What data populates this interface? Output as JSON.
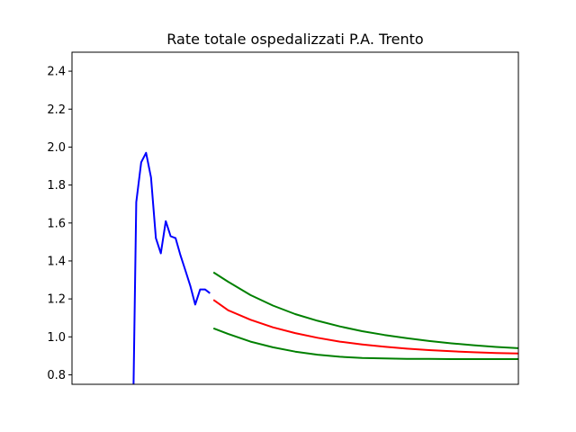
{
  "chart_data": {
    "type": "line",
    "title": "Rate totale ospedalizzati P.A. Trento",
    "xlabel": "",
    "ylabel": "",
    "x_ticks_shown": false,
    "xlim": [
      0,
      100
    ],
    "ylim": [
      0.75,
      2.5
    ],
    "yticks": [
      0.8,
      1.0,
      1.2,
      1.4,
      1.6,
      1.8,
      2.0,
      2.2,
      2.4
    ],
    "ytick_labels": [
      "0.8",
      "1.0",
      "1.2",
      "1.4",
      "1.6",
      "1.8",
      "2.0",
      "2.2",
      "2.4"
    ],
    "grid": false,
    "legend": "none",
    "series": [
      {
        "color": "#0000ff",
        "style": "observed",
        "x": [
          13.8,
          14.4,
          15.5,
          16.6,
          17.7,
          18.8,
          19.9,
          21.0,
          22.1,
          23.2,
          24.3,
          25.4,
          26.5,
          27.6,
          28.7,
          29.8,
          30.9
        ],
        "y": [
          0.75,
          1.71,
          1.92,
          1.97,
          1.84,
          1.52,
          1.44,
          1.61,
          1.53,
          1.52,
          1.43,
          1.35,
          1.27,
          1.17,
          1.25,
          1.25,
          1.23
        ]
      },
      {
        "color": "#ff0000",
        "style": "forecast",
        "x": [
          31.7,
          35,
          40,
          45,
          50,
          55,
          60,
          65,
          70,
          75,
          80,
          85,
          90,
          95,
          100
        ],
        "y": [
          1.195,
          1.14,
          1.09,
          1.05,
          1.02,
          0.995,
          0.975,
          0.96,
          0.948,
          0.938,
          0.93,
          0.924,
          0.919,
          0.915,
          0.912
        ]
      },
      {
        "color": "#008000",
        "style": "upper bound",
        "x": [
          31.7,
          35,
          40,
          45,
          50,
          55,
          60,
          65,
          70,
          75,
          80,
          85,
          90,
          95,
          100
        ],
        "y": [
          1.34,
          1.29,
          1.22,
          1.165,
          1.12,
          1.085,
          1.055,
          1.03,
          1.01,
          0.993,
          0.978,
          0.966,
          0.956,
          0.947,
          0.94
        ]
      },
      {
        "color": "#008000",
        "style": "lower bound",
        "x": [
          31.7,
          35,
          40,
          45,
          50,
          55,
          60,
          65,
          70,
          75,
          80,
          85,
          90,
          95,
          100
        ],
        "y": [
          1.045,
          1.015,
          0.975,
          0.945,
          0.922,
          0.906,
          0.895,
          0.889,
          0.886,
          0.884,
          0.884,
          0.883,
          0.883,
          0.883,
          0.883
        ]
      }
    ]
  }
}
